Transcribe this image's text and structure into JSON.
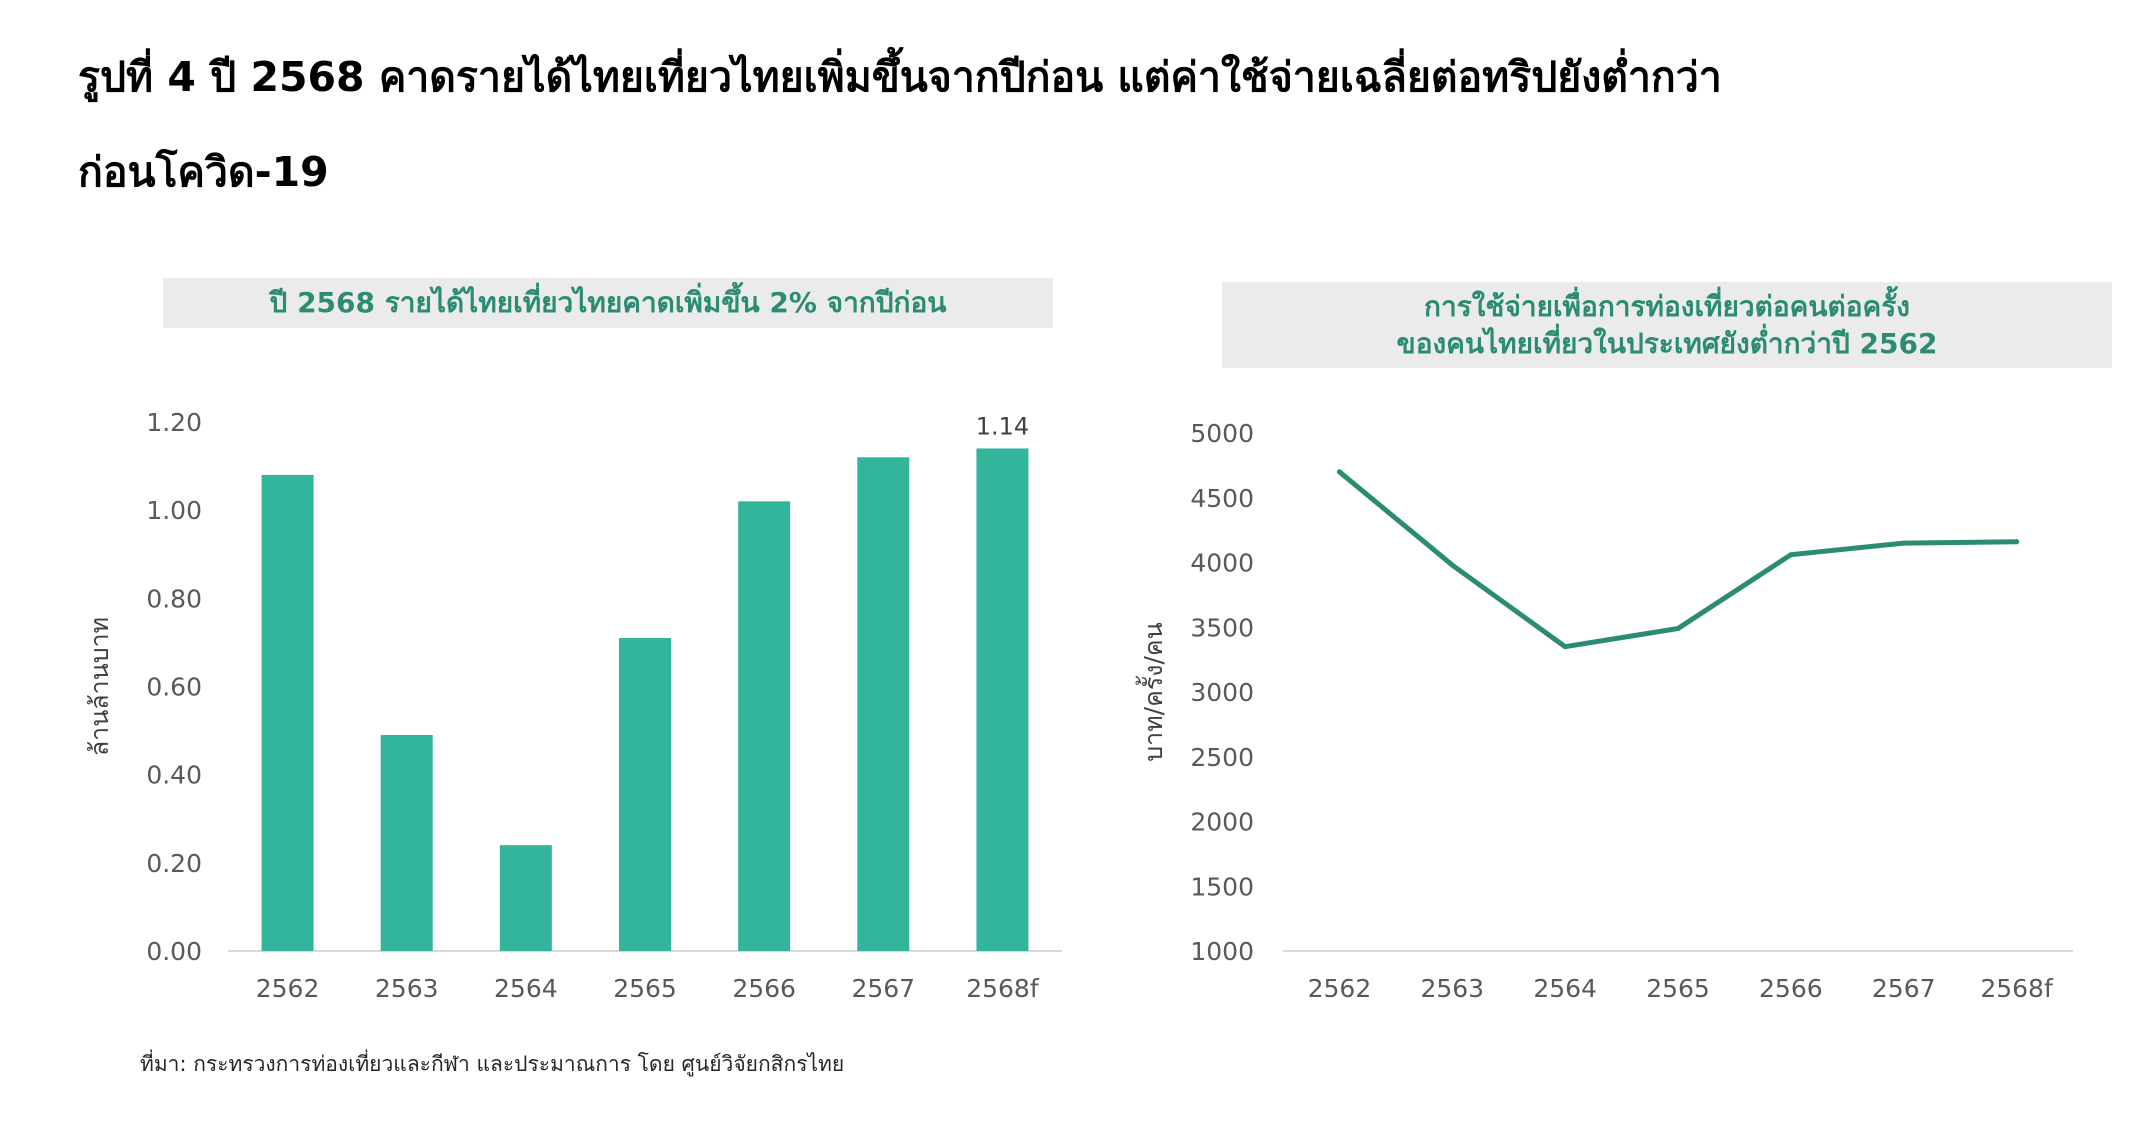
{
  "figure": {
    "title_line1": "รูปที่ 4 ปี 2568 คาดรายได้ไทยเที่ยวไทยเพิ่มขึ้นจากปีก่อน แต่ค่าใช้จ่ายเฉลี่ยต่อทริปยังต่ำกว่า",
    "title_line2": "ก่อนโควิด-19",
    "source": "ที่มา: กระทรวงการท่องเที่ยวและกีฬา และประมาณการ โดย ศูนย์วิจัยกสิกรไทย"
  },
  "chart_data": [
    {
      "type": "bar",
      "title": "ปี 2568 รายได้ไทยเที่ยวไทยคาดเพิ่มขึ้น 2% จากปีก่อน",
      "ylabel": "ล้านล้านบาท",
      "categories": [
        "2562",
        "2563",
        "2564",
        "2565",
        "2566",
        "2567",
        "2568f"
      ],
      "values": [
        1.08,
        0.49,
        0.24,
        0.71,
        1.02,
        1.12,
        1.14
      ],
      "data_labels": [
        null,
        null,
        null,
        null,
        null,
        null,
        "1.14"
      ],
      "ylim": [
        0,
        1.2
      ],
      "yticks": [
        "0.00",
        "0.20",
        "0.40",
        "0.60",
        "0.80",
        "1.00",
        "1.20"
      ],
      "color": "#33b59b",
      "grid": false
    },
    {
      "type": "line",
      "title_line1": "การใช้จ่ายเพื่อการท่องเที่ยวต่อคนต่อครั้ง",
      "title_line2": "ของคนไทยเที่ยวในประเทศยังต่ำกว่าปี 2562",
      "ylabel": "บาท/ครั้ง/คน",
      "categories": [
        "2562",
        "2563",
        "2564",
        "2565",
        "2566",
        "2567",
        "2568f"
      ],
      "values": [
        4700,
        3980,
        3350,
        3490,
        4060,
        4150,
        4160
      ],
      "ylim": [
        1000,
        5000
      ],
      "yticks": [
        "1000",
        "1500",
        "2000",
        "2500",
        "3000",
        "3500",
        "4000",
        "4500",
        "5000"
      ],
      "color": "#2b8c73",
      "grid": false
    }
  ]
}
